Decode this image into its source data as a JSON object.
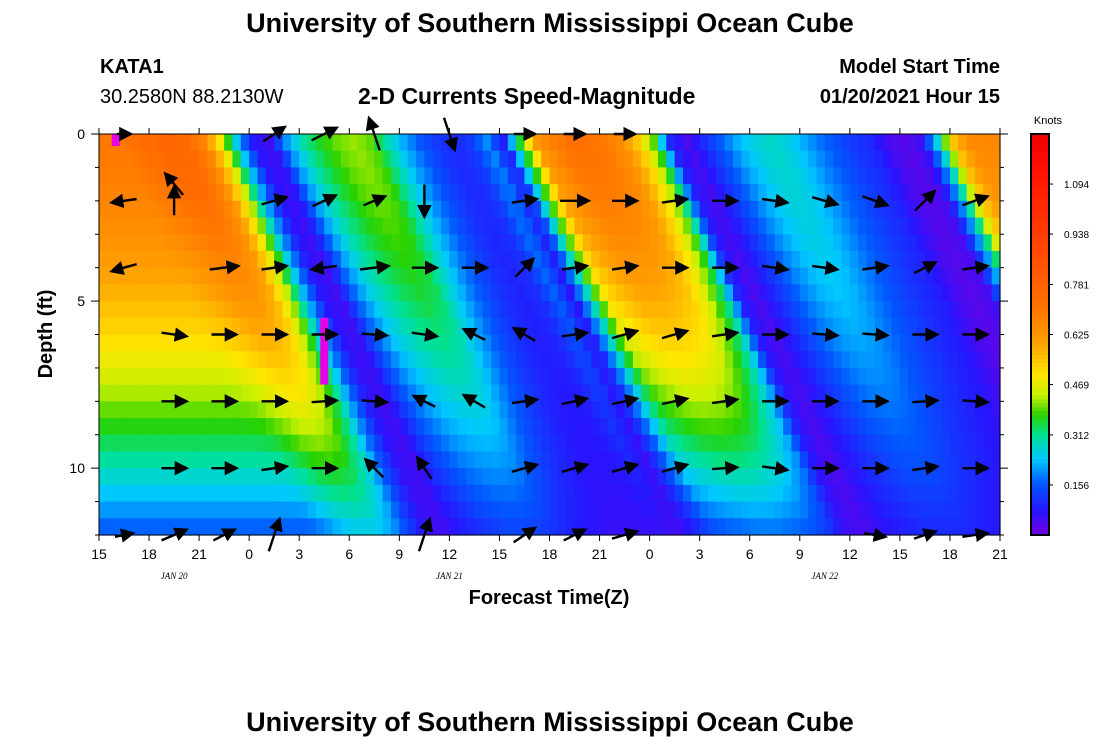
{
  "header": {
    "title_top": "University of Southern Mississippi Ocean Cube",
    "title_bottom": "University of Southern Mississippi Ocean Cube",
    "station_id": "KATA1",
    "station_coords": "30.2580N 88.2130W",
    "plot_title": "2-D Currents Speed-Magnitude",
    "model_start_label": "Model Start Time",
    "model_start_value": "01/20/2021 Hour 15"
  },
  "chart_data": {
    "type": "heatmap",
    "title": "2-D Currents Speed-Magnitude",
    "xlabel": "Forecast Time(Z)",
    "ylabel": "Depth (ft)",
    "x_ticks": [
      "15",
      "18",
      "21",
      "0",
      "3",
      "6",
      "9",
      "12",
      "15",
      "18",
      "21",
      "0",
      "3",
      "6",
      "9",
      "12",
      "15",
      "18",
      "21"
    ],
    "x_tick_hours": [
      0,
      3,
      6,
      9,
      12,
      15,
      18,
      21,
      24,
      27,
      30,
      33,
      36,
      39,
      42,
      45,
      48,
      51,
      54
    ],
    "x_range_hours": [
      0,
      54
    ],
    "date_labels": [
      {
        "text": "JAN 20",
        "hour": 4.5
      },
      {
        "text": "JAN 21",
        "hour": 21
      },
      {
        "text": "JAN 22",
        "hour": 43.5
      }
    ],
    "y_ticks": [
      "0",
      "5",
      "10"
    ],
    "y_tick_values": [
      0,
      5,
      10
    ],
    "y_range": [
      0,
      12
    ],
    "colorbar": {
      "label": "Knots",
      "range": [
        0,
        1.25
      ],
      "tick_labels": [
        "1.094",
        "0.938",
        "0.781",
        "0.625",
        "0.469",
        "0.312",
        "0.156"
      ],
      "tick_values": [
        1.094,
        0.938,
        0.781,
        0.625,
        0.469,
        0.312,
        0.156
      ]
    },
    "speed_profile": {
      "hours": [
        0,
        1,
        2,
        3,
        4,
        5,
        6,
        7,
        8,
        9,
        10,
        11,
        12,
        13,
        14,
        15,
        16,
        17,
        18,
        19,
        20,
        21,
        22,
        23,
        24,
        25,
        26,
        27,
        28,
        29,
        30,
        31,
        32,
        33,
        34,
        35,
        36,
        37,
        38,
        39,
        40,
        41,
        42,
        43,
        44,
        45,
        46,
        47,
        48,
        49,
        50,
        51,
        52,
        53,
        54
      ],
      "surface": [
        0.7,
        0.7,
        0.72,
        0.74,
        0.76,
        0.75,
        0.68,
        0.5,
        0.25,
        0.08,
        0.05,
        0.2,
        0.3,
        0.36,
        0.4,
        0.42,
        0.4,
        0.3,
        0.22,
        0.16,
        0.12,
        0.1,
        0.12,
        0.2,
        0.08,
        0.35,
        0.62,
        0.68,
        0.72,
        0.72,
        0.7,
        0.66,
        0.55,
        0.4,
        0.1,
        0.04,
        0.1,
        0.16,
        0.22,
        0.26,
        0.28,
        0.26,
        0.22,
        0.18,
        0.15,
        0.12,
        0.1,
        0.05,
        0.03,
        0.05,
        0.25,
        0.55,
        0.65,
        0.66,
        0.66
      ],
      "bottom": [
        0.15,
        0.15,
        0.15,
        0.18,
        0.22,
        0.24,
        0.24,
        0.2,
        0.12,
        0.06,
        0.05,
        0.08,
        0.1,
        0.12,
        0.13,
        0.13,
        0.12,
        0.1,
        0.08,
        0.07,
        0.06,
        0.06,
        0.06,
        0.06,
        0.05,
        0.08,
        0.13,
        0.15,
        0.16,
        0.17,
        0.17,
        0.16,
        0.15,
        0.12,
        0.06,
        0.04,
        0.06,
        0.08,
        0.09,
        0.1,
        0.1,
        0.1,
        0.09,
        0.08,
        0.07,
        0.06,
        0.05,
        0.04,
        0.03,
        0.04,
        0.12,
        0.22,
        0.25,
        0.25,
        0.25
      ],
      "lag_ft_per_hour": 0.9,
      "peak_hour": 13.5,
      "peak_depth_range": [
        5.5,
        7.5
      ],
      "peak_value": 1.2
    },
    "vectors": [
      {
        "hour": 1.5,
        "depth": 0,
        "u": 0.4,
        "v": 0
      },
      {
        "hour": 4.5,
        "depth": 2,
        "u": 0,
        "v": 0.8
      },
      {
        "hour": 10.5,
        "depth": 0,
        "u": 0.6,
        "v": 0.4
      },
      {
        "hour": 13.5,
        "depth": 0,
        "u": 0.7,
        "v": 0.35
      },
      {
        "hour": 16.5,
        "depth": 0,
        "u": -0.3,
        "v": 0.9
      },
      {
        "hour": 21,
        "depth": 0,
        "u": 0.3,
        "v": -0.9
      },
      {
        "hour": 25.5,
        "depth": 0,
        "u": 0.6,
        "v": 0
      },
      {
        "hour": 28.5,
        "depth": 0,
        "u": 0.6,
        "v": 0
      },
      {
        "hour": 31.5,
        "depth": 0,
        "u": 0.6,
        "v": 0
      },
      {
        "hour": 1.5,
        "depth": 2,
        "u": -0.7,
        "v": -0.1
      },
      {
        "hour": 4.5,
        "depth": 1.5,
        "u": -0.5,
        "v": 0.6
      },
      {
        "hour": 10.5,
        "depth": 2,
        "u": 0.7,
        "v": 0.2
      },
      {
        "hour": 13.5,
        "depth": 2,
        "u": 0.65,
        "v": 0.3
      },
      {
        "hour": 16.5,
        "depth": 2,
        "u": 0.6,
        "v": 0.25
      },
      {
        "hour": 19.5,
        "depth": 2,
        "u": 0,
        "v": -0.9
      },
      {
        "hour": 25.5,
        "depth": 2,
        "u": 0.7,
        "v": 0.1
      },
      {
        "hour": 28.5,
        "depth": 2,
        "u": 0.8,
        "v": 0
      },
      {
        "hour": 31.5,
        "depth": 2,
        "u": 0.7,
        "v": 0
      },
      {
        "hour": 34.5,
        "depth": 2,
        "u": 0.7,
        "v": 0.1
      },
      {
        "hour": 37.5,
        "depth": 2,
        "u": 0.7,
        "v": 0
      },
      {
        "hour": 40.5,
        "depth": 2,
        "u": 0.7,
        "v": -0.1
      },
      {
        "hour": 43.5,
        "depth": 2,
        "u": 0.7,
        "v": -0.2
      },
      {
        "hour": 46.5,
        "depth": 2,
        "u": 0.7,
        "v": -0.25
      },
      {
        "hour": 49.5,
        "depth": 2,
        "u": 0.55,
        "v": 0.55
      },
      {
        "hour": 52.5,
        "depth": 2,
        "u": 0.7,
        "v": 0.25
      },
      {
        "hour": 1.5,
        "depth": 4,
        "u": -0.7,
        "v": -0.2
      },
      {
        "hour": 7.5,
        "depth": 4,
        "u": 0.8,
        "v": 0.1
      },
      {
        "hour": 10.5,
        "depth": 4,
        "u": 0.7,
        "v": 0.1
      },
      {
        "hour": 13.5,
        "depth": 4,
        "u": -0.7,
        "v": -0.1
      },
      {
        "hour": 16.5,
        "depth": 4,
        "u": 0.8,
        "v": 0.1
      },
      {
        "hour": 19.5,
        "depth": 4,
        "u": 0.7,
        "v": 0
      },
      {
        "hour": 22.5,
        "depth": 4,
        "u": 0.7,
        "v": 0
      },
      {
        "hour": 25.5,
        "depth": 4,
        "u": 0.5,
        "v": 0.5
      },
      {
        "hour": 28.5,
        "depth": 4,
        "u": 0.7,
        "v": 0.1
      },
      {
        "hour": 31.5,
        "depth": 4,
        "u": 0.7,
        "v": 0.1
      },
      {
        "hour": 34.5,
        "depth": 4,
        "u": 0.7,
        "v": 0
      },
      {
        "hour": 37.5,
        "depth": 4,
        "u": 0.7,
        "v": 0
      },
      {
        "hour": 40.5,
        "depth": 4,
        "u": 0.7,
        "v": -0.1
      },
      {
        "hour": 43.5,
        "depth": 4,
        "u": 0.7,
        "v": -0.1
      },
      {
        "hour": 46.5,
        "depth": 4,
        "u": 0.7,
        "v": 0.1
      },
      {
        "hour": 49.5,
        "depth": 4,
        "u": 0.6,
        "v": 0.3
      },
      {
        "hour": 52.5,
        "depth": 4,
        "u": 0.7,
        "v": 0.1
      },
      {
        "hour": 4.5,
        "depth": 6,
        "u": 0.7,
        "v": -0.1
      },
      {
        "hour": 7.5,
        "depth": 6,
        "u": 0.7,
        "v": 0
      },
      {
        "hour": 10.5,
        "depth": 6,
        "u": 0.7,
        "v": 0
      },
      {
        "hour": 13.5,
        "depth": 6,
        "u": 0.7,
        "v": 0
      },
      {
        "hour": 16.5,
        "depth": 6,
        "u": 0.7,
        "v": -0.05
      },
      {
        "hour": 19.5,
        "depth": 6,
        "u": 0.7,
        "v": -0.1
      },
      {
        "hour": 22.5,
        "depth": 6,
        "u": -0.6,
        "v": 0.3
      },
      {
        "hour": 25.5,
        "depth": 6,
        "u": -0.6,
        "v": 0.35
      },
      {
        "hour": 28.5,
        "depth": 6,
        "u": 0.7,
        "v": 0.1
      },
      {
        "hour": 31.5,
        "depth": 6,
        "u": 0.7,
        "v": 0.2
      },
      {
        "hour": 34.5,
        "depth": 6,
        "u": 0.7,
        "v": 0.2
      },
      {
        "hour": 37.5,
        "depth": 6,
        "u": 0.7,
        "v": 0.1
      },
      {
        "hour": 40.5,
        "depth": 6,
        "u": 0.7,
        "v": 0
      },
      {
        "hour": 43.5,
        "depth": 6,
        "u": 0.7,
        "v": -0.05
      },
      {
        "hour": 46.5,
        "depth": 6,
        "u": 0.7,
        "v": -0.05
      },
      {
        "hour": 49.5,
        "depth": 6,
        "u": 0.7,
        "v": 0
      },
      {
        "hour": 52.5,
        "depth": 6,
        "u": 0.7,
        "v": 0
      },
      {
        "hour": 4.5,
        "depth": 8,
        "u": 0.7,
        "v": 0
      },
      {
        "hour": 7.5,
        "depth": 8,
        "u": 0.7,
        "v": 0
      },
      {
        "hour": 10.5,
        "depth": 8,
        "u": 0.7,
        "v": 0
      },
      {
        "hour": 13.5,
        "depth": 8,
        "u": 0.7,
        "v": 0.05
      },
      {
        "hour": 16.5,
        "depth": 8,
        "u": 0.7,
        "v": -0.05
      },
      {
        "hour": 19.5,
        "depth": 8,
        "u": -0.6,
        "v": 0.3
      },
      {
        "hour": 22.5,
        "depth": 8,
        "u": -0.6,
        "v": 0.35
      },
      {
        "hour": 25.5,
        "depth": 8,
        "u": 0.7,
        "v": 0.1
      },
      {
        "hour": 28.5,
        "depth": 8,
        "u": 0.7,
        "v": 0.15
      },
      {
        "hour": 31.5,
        "depth": 8,
        "u": 0.7,
        "v": 0.15
      },
      {
        "hour": 34.5,
        "depth": 8,
        "u": 0.7,
        "v": 0.15
      },
      {
        "hour": 37.5,
        "depth": 8,
        "u": 0.7,
        "v": 0.1
      },
      {
        "hour": 40.5,
        "depth": 8,
        "u": 0.7,
        "v": 0
      },
      {
        "hour": 43.5,
        "depth": 8,
        "u": 0.7,
        "v": 0
      },
      {
        "hour": 46.5,
        "depth": 8,
        "u": 0.7,
        "v": 0
      },
      {
        "hour": 49.5,
        "depth": 8,
        "u": 0.7,
        "v": 0.05
      },
      {
        "hour": 52.5,
        "depth": 8,
        "u": 0.7,
        "v": -0.05
      },
      {
        "hour": 4.5,
        "depth": 10,
        "u": 0.7,
        "v": 0
      },
      {
        "hour": 7.5,
        "depth": 10,
        "u": 0.7,
        "v": 0
      },
      {
        "hour": 10.5,
        "depth": 10,
        "u": 0.7,
        "v": 0.1
      },
      {
        "hour": 13.5,
        "depth": 10,
        "u": 0.7,
        "v": 0
      },
      {
        "hour": 16.5,
        "depth": 10,
        "u": -0.5,
        "v": 0.5
      },
      {
        "hour": 19.5,
        "depth": 10,
        "u": -0.4,
        "v": 0.6
      },
      {
        "hour": 25.5,
        "depth": 10,
        "u": 0.7,
        "v": 0.2
      },
      {
        "hour": 28.5,
        "depth": 10,
        "u": 0.7,
        "v": 0.2
      },
      {
        "hour": 31.5,
        "depth": 10,
        "u": 0.7,
        "v": 0.2
      },
      {
        "hour": 34.5,
        "depth": 10,
        "u": 0.7,
        "v": 0.2
      },
      {
        "hour": 37.5,
        "depth": 10,
        "u": 0.7,
        "v": 0.05
      },
      {
        "hour": 40.5,
        "depth": 10,
        "u": 0.7,
        "v": -0.1
      },
      {
        "hour": 43.5,
        "depth": 10,
        "u": 0.7,
        "v": 0
      },
      {
        "hour": 46.5,
        "depth": 10,
        "u": 0.7,
        "v": 0
      },
      {
        "hour": 49.5,
        "depth": 10,
        "u": 0.7,
        "v": 0.1
      },
      {
        "hour": 52.5,
        "depth": 10,
        "u": 0.7,
        "v": 0
      },
      {
        "hour": 1.5,
        "depth": 12,
        "u": 0.5,
        "v": 0.1
      },
      {
        "hour": 4.5,
        "depth": 12,
        "u": 0.7,
        "v": 0.3
      },
      {
        "hour": 7.5,
        "depth": 12,
        "u": 0.6,
        "v": 0.3
      },
      {
        "hour": 10.5,
        "depth": 12,
        "u": 0.3,
        "v": 0.9
      },
      {
        "hour": 19.5,
        "depth": 12,
        "u": 0.3,
        "v": 0.9
      },
      {
        "hour": 25.5,
        "depth": 12,
        "u": 0.6,
        "v": 0.4
      },
      {
        "hour": 28.5,
        "depth": 12,
        "u": 0.6,
        "v": 0.3
      },
      {
        "hour": 31.5,
        "depth": 12,
        "u": 0.7,
        "v": 0.2
      },
      {
        "hour": 46.5,
        "depth": 12,
        "u": 0.6,
        "v": -0.1
      },
      {
        "hour": 49.5,
        "depth": 12,
        "u": 0.6,
        "v": 0.2
      },
      {
        "hour": 52.5,
        "depth": 12,
        "u": 0.7,
        "v": 0.1
      }
    ]
  }
}
